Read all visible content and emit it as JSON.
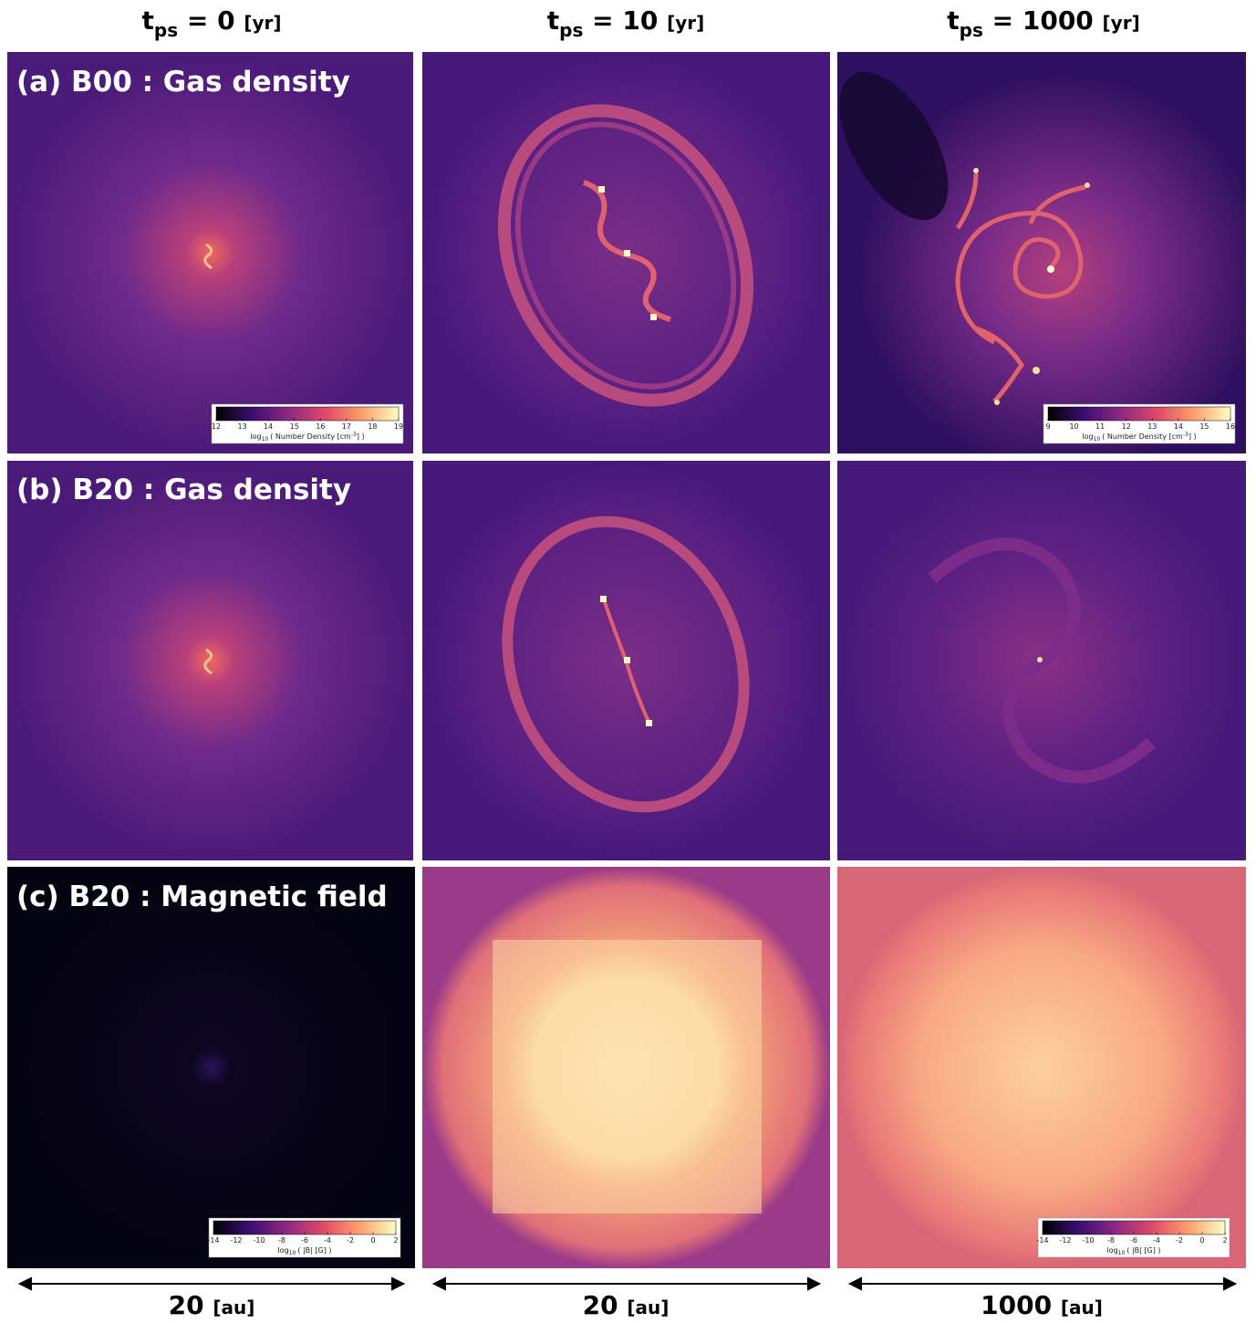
{
  "columns": [
    {
      "symbol": "t",
      "subscript": "ps",
      "value": "= 0",
      "unit": "[yr]"
    },
    {
      "symbol": "t",
      "subscript": "ps",
      "value": "= 10",
      "unit": "[yr]"
    },
    {
      "symbol": "t",
      "subscript": "ps",
      "value": "= 1000",
      "unit": "[yr]"
    }
  ],
  "rows": [
    {
      "label": "(a) B00 : Gas density"
    },
    {
      "label": "(b) B20 : Gas density"
    },
    {
      "label": "(c) B20 : Magnetic field"
    }
  ],
  "colorbars": [
    {
      "ticks": [
        12,
        13,
        14,
        15,
        16,
        17,
        18,
        19
      ],
      "label": {
        "pre": "log",
        "sub": "10",
        "mid": "( Number Density [cm",
        "sup": "-3",
        "post": "] )"
      }
    },
    {
      "ticks": [
        9,
        10,
        11,
        12,
        13,
        14,
        15,
        16
      ],
      "label": {
        "pre": "log",
        "sub": "10",
        "mid": "( Number Density [cm",
        "sup": "-3",
        "post": "] )"
      }
    },
    {
      "ticks": [
        -14,
        -12,
        -10,
        -8,
        -6,
        -4,
        -2,
        0,
        2
      ],
      "label": {
        "pre": "log",
        "sub": "10",
        "mid": "( |B| [G] )"
      }
    },
    {
      "ticks": [
        -14,
        -12,
        -10,
        -8,
        -6,
        -4,
        -2,
        0,
        2
      ],
      "label": {
        "pre": "log",
        "sub": "10",
        "mid": "( |B| [G] )"
      }
    }
  ],
  "scale_bars": [
    {
      "length": "20",
      "unit": "[au]"
    },
    {
      "length": "20",
      "unit": "[au]"
    },
    {
      "length": "1000",
      "unit": "[au]"
    }
  ]
}
